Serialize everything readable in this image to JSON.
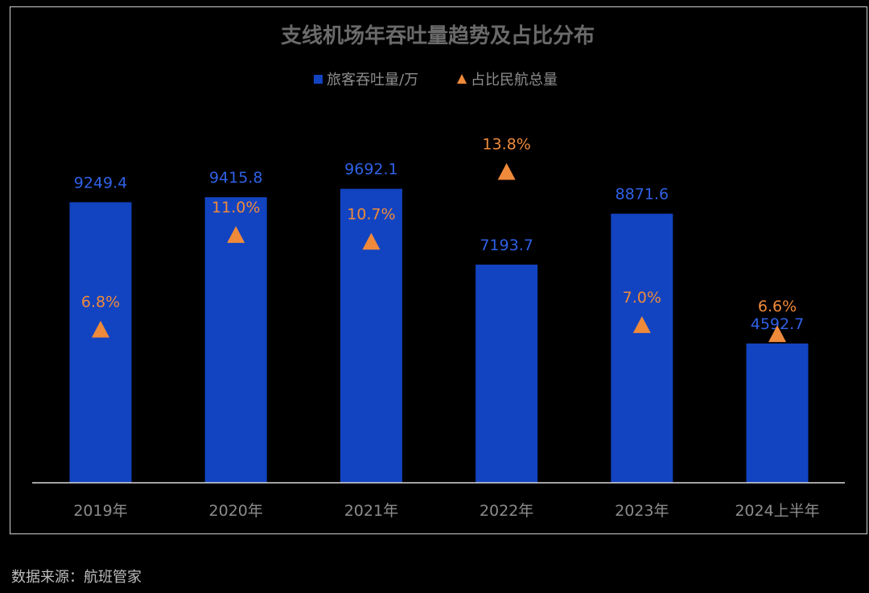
{
  "colors": {
    "background": "#000000",
    "bar": "#1244c1",
    "bar_label": "#2e61e6",
    "marker": "#ef8a3b",
    "title": "#6a6a6a",
    "axis_text": "#8c8c8c",
    "legend_text": "#8c8c8c",
    "source_text": "#bdbdbd"
  },
  "chart_data": {
    "type": "bar",
    "title": "支线机场年吞吐量趋势及占比分布",
    "categories": [
      "2019年",
      "2020年",
      "2021年",
      "2022年",
      "2023年",
      "2024上半年"
    ],
    "series": [
      {
        "name": "旅客吞吐量/万",
        "kind": "bar",
        "values": [
          9249.4,
          9415.8,
          9692.1,
          7193.7,
          8871.6,
          4592.7
        ],
        "labels": [
          "9249.4",
          "9415.8",
          "9692.1",
          "7193.7",
          "8871.6",
          "4592.7"
        ]
      },
      {
        "name": "占比民航总量",
        "kind": "triangle-marker",
        "values": [
          6.8,
          11.0,
          10.7,
          13.8,
          7.0,
          6.6
        ],
        "labels": [
          "6.8%",
          "11.0%",
          "10.7%",
          "13.8%",
          "7.0%",
          "6.6%"
        ]
      }
    ],
    "legend_position": "top-center",
    "grid": false
  },
  "source": "数据来源：航班管家"
}
